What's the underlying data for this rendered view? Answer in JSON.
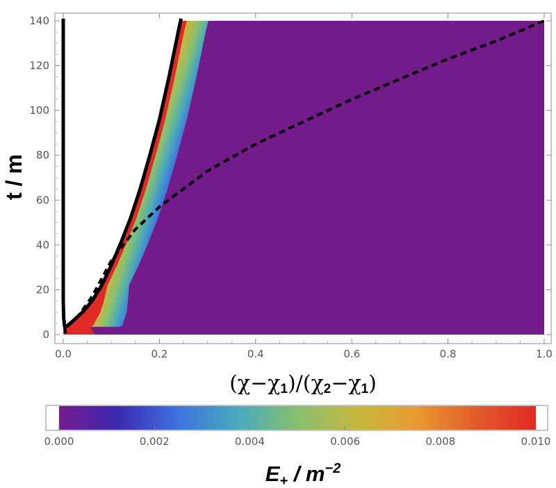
{
  "chart_data": {
    "type": "heatmap",
    "xlabel_parts": [
      "(χ−χ",
      "1",
      ")/(χ",
      "2",
      "−χ",
      "1",
      ")"
    ],
    "ylabel": "t / m",
    "xlim": [
      0,
      1.0
    ],
    "ylim": [
      0,
      140
    ],
    "x_ticks": [
      "0.0",
      "0.2",
      "0.4",
      "0.6",
      "0.8",
      "1.0"
    ],
    "y_ticks": [
      "0",
      "20",
      "40",
      "60",
      "80",
      "100",
      "120",
      "140"
    ],
    "colorbar": {
      "title_parts": [
        "E",
        "+",
        " / m",
        "−2"
      ],
      "range": [
        0,
        0.01
      ],
      "ticks": [
        "0.000",
        "0.002",
        "0.004",
        "0.006",
        "0.008",
        "0.010"
      ],
      "colors": [
        "#741b8c",
        "#3a2ab2",
        "#3f73de",
        "#4aa9bd",
        "#88c070",
        "#c6b740",
        "#e79b32",
        "#e35a2a",
        "#e02a25"
      ]
    },
    "series": [
      {
        "style": "solid",
        "points": [
          [
            0.0,
            141
          ],
          [
            0.0,
            120
          ],
          [
            0.0,
            60
          ],
          [
            0.0,
            15
          ],
          [
            0.001,
            7
          ],
          [
            0.003,
            3.5
          ],
          [
            0.01,
            4
          ],
          [
            0.02,
            6
          ],
          [
            0.04,
            10
          ],
          [
            0.06,
            15
          ],
          [
            0.08,
            22
          ],
          [
            0.1,
            31
          ],
          [
            0.12,
            41
          ],
          [
            0.14,
            52
          ],
          [
            0.16,
            65
          ],
          [
            0.18,
            80
          ],
          [
            0.2,
            96
          ],
          [
            0.22,
            115
          ],
          [
            0.24,
            136
          ],
          [
            0.245,
            141
          ]
        ]
      },
      {
        "style": "dashed",
        "points": [
          [
            0.005,
            0.5
          ],
          [
            0.003,
            3.5
          ],
          [
            0.01,
            4.5
          ],
          [
            0.03,
            8
          ],
          [
            0.06,
            17
          ],
          [
            0.1,
            33
          ],
          [
            0.15,
            47
          ],
          [
            0.2,
            57
          ],
          [
            0.3,
            73
          ],
          [
            0.4,
            85
          ],
          [
            0.5,
            95
          ],
          [
            0.6,
            105
          ],
          [
            0.7,
            114
          ],
          [
            0.8,
            123
          ],
          [
            0.9,
            131
          ],
          [
            1.0,
            140
          ]
        ]
      }
    ]
  }
}
